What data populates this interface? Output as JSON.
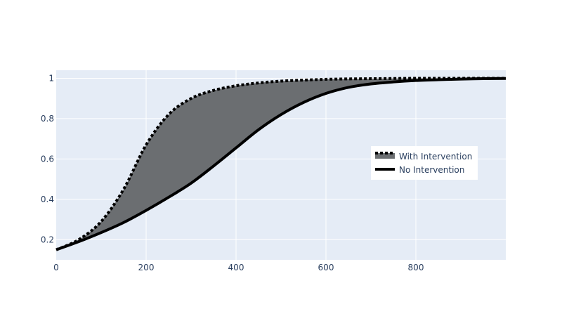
{
  "chart_data": {
    "type": "line",
    "title": "",
    "xlabel": "",
    "ylabel": "",
    "xlim": [
      0,
      1000
    ],
    "ylim": [
      0.1,
      1.04
    ],
    "x_ticks": [
      0,
      200,
      400,
      600,
      800
    ],
    "y_ticks": [
      0.2,
      0.4,
      0.6,
      0.8,
      1
    ],
    "grid": true,
    "legend_position": "right",
    "plot_background": "#e5ecf6",
    "fill_between": "tonexty",
    "fill_color": "#6b6e71",
    "series": [
      {
        "name": "No Intervention",
        "style": "solid",
        "color": "#000000",
        "x": [
          0,
          50,
          100,
          150,
          200,
          250,
          300,
          350,
          400,
          450,
          500,
          550,
          600,
          650,
          700,
          750,
          800,
          850,
          900,
          950,
          1000
        ],
        "y": [
          0.15,
          0.19,
          0.235,
          0.285,
          0.345,
          0.41,
          0.48,
          0.565,
          0.655,
          0.745,
          0.82,
          0.88,
          0.925,
          0.955,
          0.972,
          0.982,
          0.989,
          0.993,
          0.996,
          0.998,
          0.999
        ]
      },
      {
        "name": "With Intervention",
        "style": "dotted",
        "color": "#000000",
        "x": [
          0,
          50,
          100,
          150,
          200,
          250,
          300,
          350,
          400,
          450,
          500,
          550,
          600,
          650,
          700,
          750,
          800,
          850,
          900,
          950,
          1000
        ],
        "y": [
          0.15,
          0.2,
          0.29,
          0.45,
          0.67,
          0.82,
          0.9,
          0.94,
          0.963,
          0.977,
          0.986,
          0.991,
          0.995,
          0.997,
          0.998,
          0.999,
          1.0,
          1.0,
          1.0,
          1.0,
          1.0
        ]
      }
    ]
  }
}
